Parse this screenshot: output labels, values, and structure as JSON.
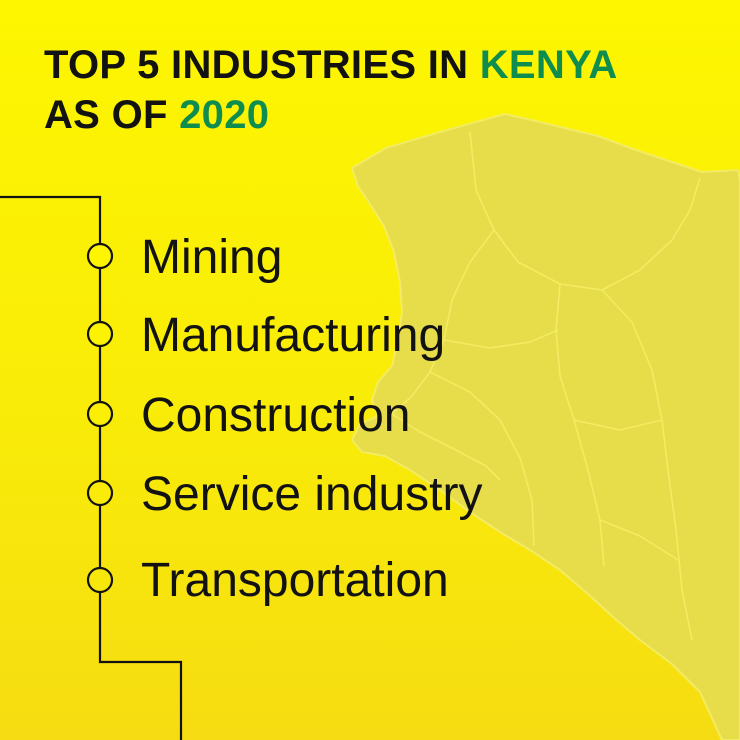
{
  "title": {
    "line1_prefix": "TOP 5 INDUSTRIES IN ",
    "line1_highlight": "KENYA",
    "line2_prefix": "AS OF ",
    "line2_highlight": "2020"
  },
  "industries": [
    "Mining",
    "Manufacturing",
    "Construction",
    "Service industry",
    "Transportation"
  ],
  "colors": {
    "background": "#fdf600",
    "text": "#121212",
    "accent": "#0f8d4f",
    "map_fill": "#e7dc49",
    "map_border": "#f3ec62"
  }
}
